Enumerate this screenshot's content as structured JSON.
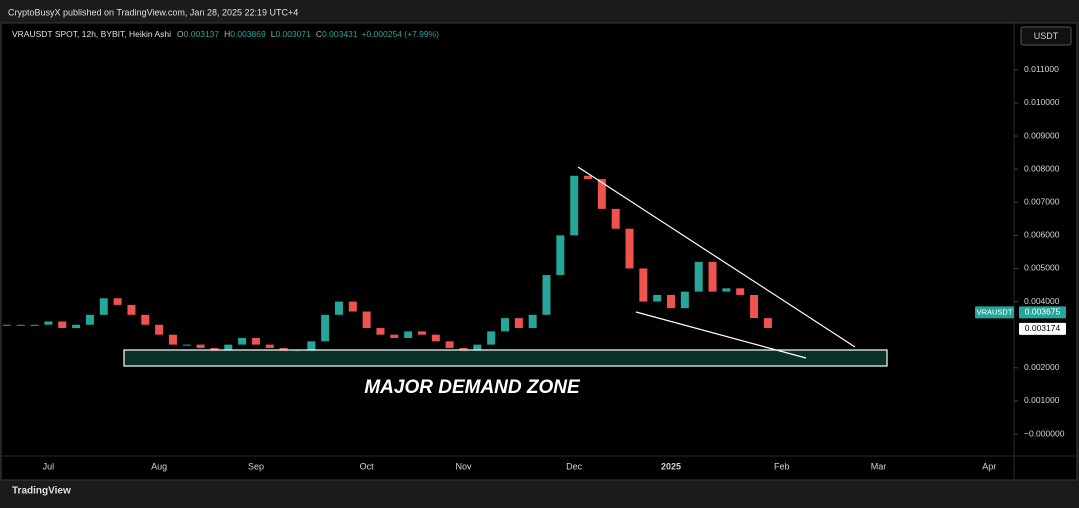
{
  "header": {
    "publisher": "CryptoBusyX published on TradingView.com, Jan 28, 2025 22:19 UTC+4"
  },
  "chart_data": {
    "type": "candlestick",
    "title": "VRAUSDT SPOT, 12h, BYBIT, Heikin Ashi",
    "ohlc_legend": [
      {
        "label": "O",
        "value": "0.003137"
      },
      {
        "label": "H",
        "value": "0.003869"
      },
      {
        "label": "L",
        "value": "0.003071"
      },
      {
        "label": "C",
        "value": "0.003431"
      }
    ],
    "change": "+0.000254 (+7.99%)",
    "currency": "USDT",
    "categories": [
      null,
      null,
      null,
      "Jul",
      null,
      null,
      null,
      null,
      null,
      null,
      null,
      "Aug",
      null,
      null,
      null,
      null,
      null,
      null,
      "Sep",
      null,
      null,
      null,
      null,
      null,
      null,
      null,
      "Oct",
      null,
      null,
      null,
      null,
      null,
      null,
      "Nov",
      null,
      null,
      null,
      null,
      null,
      null,
      null,
      "Dec",
      null,
      null,
      null,
      null,
      null,
      null,
      "2025",
      null,
      null,
      null,
      null,
      null,
      null,
      null,
      "Feb",
      null,
      null,
      null,
      null,
      null,
      null,
      "Mar",
      null,
      null,
      null,
      null,
      null,
      null,
      null,
      "Apr",
      null
    ],
    "series": [
      {
        "name": "VRAUSDT",
        "up_color": "#26a69a",
        "down_color": "#ef5350",
        "values": [
          0.0033,
          0.0033,
          0.0033,
          0.0034,
          0.0032,
          0.0033,
          0.0036,
          0.0041,
          0.0039,
          0.0036,
          0.0033,
          0.003,
          0.0027,
          0.0027,
          0.0026,
          0.0025,
          0.0027,
          0.0029,
          0.0027,
          0.0026,
          0.0025,
          0.0025,
          0.0028,
          0.0036,
          0.004,
          0.0037,
          0.0032,
          0.003,
          0.0029,
          0.0031,
          0.003,
          0.0028,
          0.0026,
          0.0025,
          0.0027,
          0.0031,
          0.0035,
          0.0032,
          0.0036,
          0.0048,
          0.006,
          0.0078,
          0.0077,
          0.0068,
          0.0062,
          0.005,
          0.004,
          0.0042,
          0.0038,
          0.0043,
          0.0052,
          0.0043,
          0.0044,
          0.0042,
          0.0035,
          0.0032,
          null,
          null,
          null,
          null,
          null,
          null,
          null,
          null,
          null,
          null,
          null,
          null,
          null,
          null,
          null,
          null,
          null
        ]
      }
    ],
    "ylim": [
      -0.000634,
      0.01175
    ],
    "yticks": [
      {
        "value": 0.011,
        "label": "0.011000"
      },
      {
        "value": 0.01,
        "label": "0.010000"
      },
      {
        "value": 0.009,
        "label": "0.009000"
      },
      {
        "value": 0.008,
        "label": "0.008000"
      },
      {
        "value": 0.007,
        "label": "0.007000"
      },
      {
        "value": 0.006,
        "label": "0.006000"
      },
      {
        "value": 0.005,
        "label": "0.005000"
      },
      {
        "value": 0.004,
        "label": "0.004000"
      },
      {
        "value": 0.002,
        "label": "0.002000"
      },
      {
        "value": 0.001,
        "label": "0.001000"
      },
      {
        "value": 0,
        "label": "−0.000000"
      }
    ],
    "grid": false,
    "last_price": 0.003675,
    "marker_price": 0.003174,
    "annotation": "MAJOR DEMAND ZONE"
  },
  "footer": {
    "brand": "TradingView"
  }
}
